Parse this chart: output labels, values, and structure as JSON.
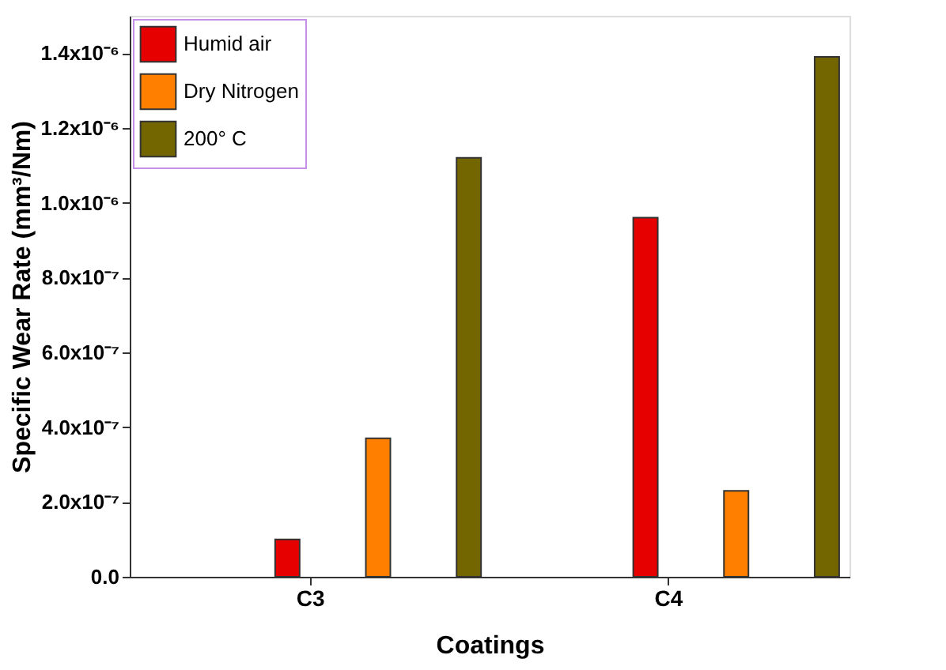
{
  "chart_data": {
    "type": "bar",
    "xlabel": "Coatings",
    "ylabel": "Specific Wear Rate (mm³/Nm)",
    "categories": [
      "C3",
      "C4"
    ],
    "series": [
      {
        "name": "Humid air",
        "color": "#e60000",
        "values": [
          1e-07,
          9.6e-07
        ]
      },
      {
        "name": "Dry Nitrogen",
        "color": "#ff8000",
        "values": [
          3.7e-07,
          2.3e-07
        ]
      },
      {
        "name": "200° C",
        "color": "#736600",
        "values": [
          1.12e-06,
          1.39e-06
        ]
      }
    ],
    "ylim": [
      0,
      1.5e-06
    ],
    "yticks": [
      {
        "value": 0,
        "label": "0.0"
      },
      {
        "value": 2e-07,
        "label": "2.0x10⁻⁷"
      },
      {
        "value": 4e-07,
        "label": "4.0x10⁻⁷"
      },
      {
        "value": 6e-07,
        "label": "6.0x10⁻⁷"
      },
      {
        "value": 8e-07,
        "label": "8.0x10⁻⁷"
      },
      {
        "value": 1e-06,
        "label": "1.0x10⁻⁶"
      },
      {
        "value": 1.2e-06,
        "label": "1.2x10⁻⁶"
      },
      {
        "value": 1.4e-06,
        "label": "1.4x10⁻⁶"
      }
    ],
    "grid": false,
    "legend": "top left"
  }
}
